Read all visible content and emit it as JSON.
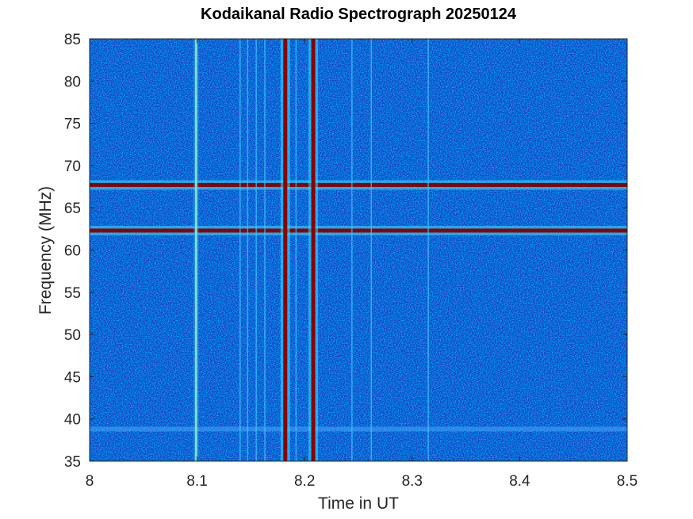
{
  "chart_data": {
    "type": "heatmap",
    "title": "Kodaikanal Radio Spectrograph  20250124",
    "xlabel": "Time in UT",
    "ylabel": "Frequency (MHz)",
    "xlim": [
      8,
      8.5
    ],
    "ylim": [
      35,
      85
    ],
    "x_ticks": [
      8,
      8.1,
      8.2,
      8.3,
      8.4,
      8.5
    ],
    "x_tick_labels": [
      "8",
      "8.1",
      "8.2",
      "8.3",
      "8.4",
      "8.5"
    ],
    "y_ticks": [
      35,
      40,
      45,
      50,
      55,
      60,
      65,
      70,
      75,
      80,
      85
    ],
    "y_tick_labels": [
      "35",
      "40",
      "45",
      "50",
      "55",
      "60",
      "65",
      "70",
      "75",
      "80",
      "85"
    ],
    "colormap": "jet",
    "background_color": "#1a3fc0",
    "saturated_color": "#8b0000",
    "features": {
      "horizontal_bands_mhz": [
        {
          "frequency": 67.7,
          "intensity": "strong"
        },
        {
          "frequency": 62.3,
          "intensity": "strong"
        },
        {
          "frequency": 38.8,
          "intensity": "weak"
        }
      ],
      "vertical_bursts_ut": [
        {
          "time": 8.099,
          "intensity": "moderate"
        },
        {
          "time": 8.14,
          "intensity": "weak"
        },
        {
          "time": 8.147,
          "intensity": "weak"
        },
        {
          "time": 8.155,
          "intensity": "weak"
        },
        {
          "time": 8.163,
          "intensity": "weak"
        },
        {
          "time": 8.182,
          "intensity": "strong"
        },
        {
          "time": 8.192,
          "intensity": "weak"
        },
        {
          "time": 8.208,
          "intensity": "strong"
        },
        {
          "time": 8.244,
          "intensity": "weak"
        },
        {
          "time": 8.262,
          "intensity": "weak"
        },
        {
          "time": 8.315,
          "intensity": "weak"
        }
      ]
    }
  }
}
